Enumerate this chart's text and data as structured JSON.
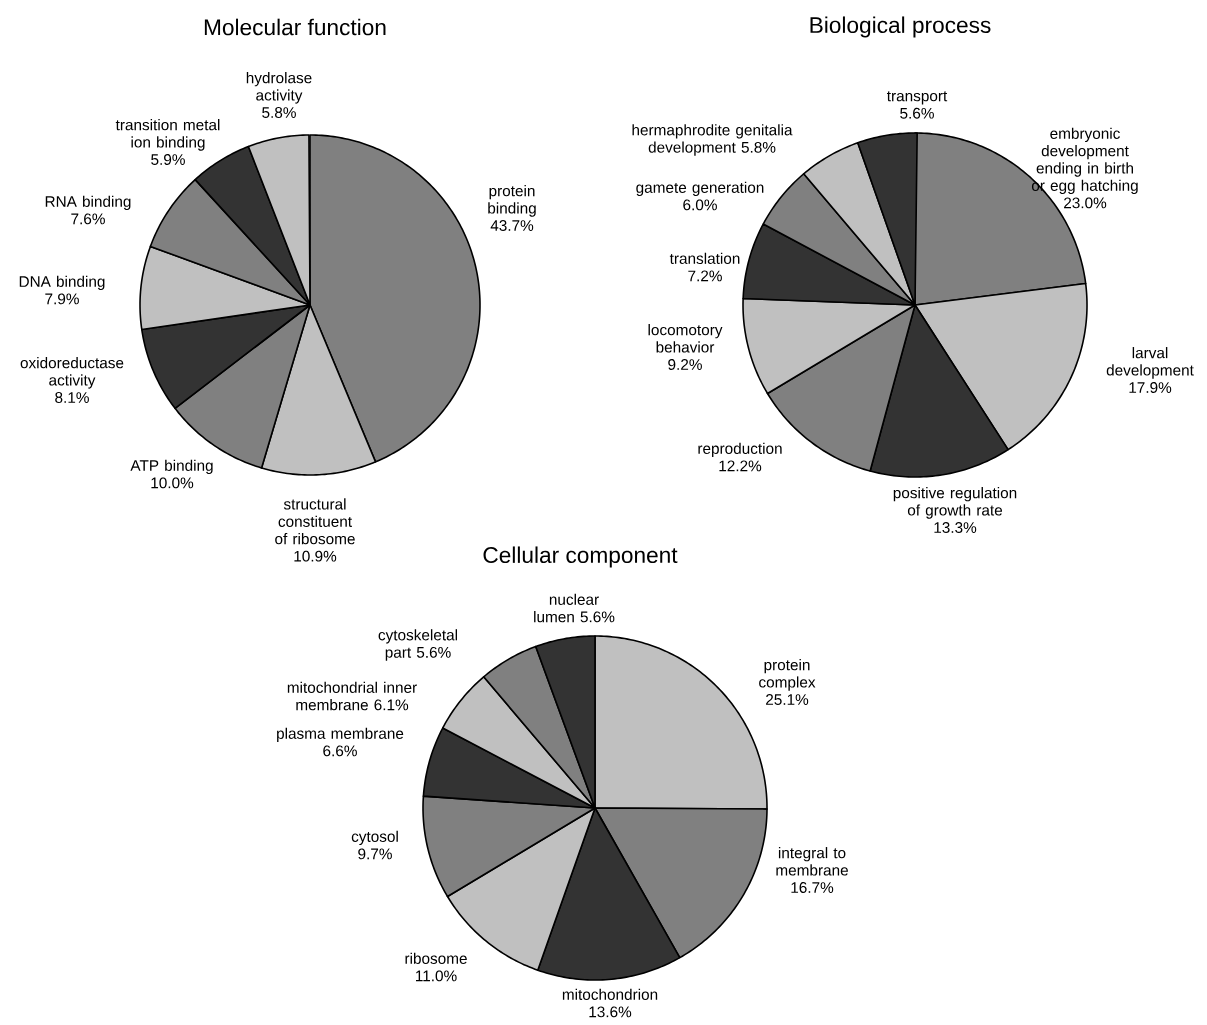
{
  "chart_data": [
    {
      "type": "pie",
      "title": "Molecular function",
      "categories": [
        "protein binding",
        "structural constituent of ribosome",
        "ATP binding",
        "oxidoreductase activity",
        "DNA binding",
        "RNA binding",
        "transition metal ion binding",
        "hydrolase activity"
      ],
      "values": [
        43.7,
        10.9,
        10.0,
        8.1,
        7.9,
        7.6,
        5.9,
        5.8
      ],
      "value_labels": [
        "43.7%",
        "10.9%",
        "10.0%",
        "8.1%",
        "7.9%",
        "7.6%",
        "5.9%",
        "5.8%"
      ],
      "colors": [
        "#808080",
        "#c0c0c0",
        "#808080",
        "#333333",
        "#c0c0c0",
        "#808080",
        "#333333",
        "#c0c0c0"
      ]
    },
    {
      "type": "pie",
      "title": "Biological process",
      "categories": [
        "embryonic development ending in birth or egg hatching",
        "larval development",
        "positive regulation of growth rate",
        "reproduction",
        "locomotory behavior",
        "translation",
        "gamete generation",
        "hermaphrodite genitalia development",
        "transport"
      ],
      "values": [
        23.0,
        17.9,
        13.3,
        12.2,
        9.2,
        7.2,
        6.0,
        5.8,
        5.6
      ],
      "value_labels": [
        "23.0%",
        "17.9%",
        "13.3%",
        "12.2%",
        "9.2%",
        "7.2%",
        "6.0%",
        "5.8%",
        "5.6%"
      ],
      "colors": [
        "#808080",
        "#c0c0c0",
        "#333333",
        "#808080",
        "#c0c0c0",
        "#333333",
        "#808080",
        "#c0c0c0",
        "#333333"
      ]
    },
    {
      "type": "pie",
      "title": "Cellular component",
      "categories": [
        "protein complex",
        "integral to membrane",
        "mitochondrion",
        "ribosome",
        "cytosol",
        "plasma membrane",
        "mitochondrial inner membrane",
        "cytoskeletal part",
        "nuclear lumen"
      ],
      "values": [
        25.1,
        16.7,
        13.6,
        11.0,
        9.7,
        6.6,
        6.1,
        5.6,
        5.6
      ],
      "value_labels": [
        "25.1%",
        "16.7%",
        "13.6%",
        "11.0%",
        "9.7%",
        "6.6%",
        "6.1%",
        "5.6%",
        "5.6%"
      ],
      "colors": [
        "#c0c0c0",
        "#808080",
        "#333333",
        "#c0c0c0",
        "#808080",
        "#333333",
        "#c0c0c0",
        "#808080",
        "#333333"
      ]
    }
  ]
}
